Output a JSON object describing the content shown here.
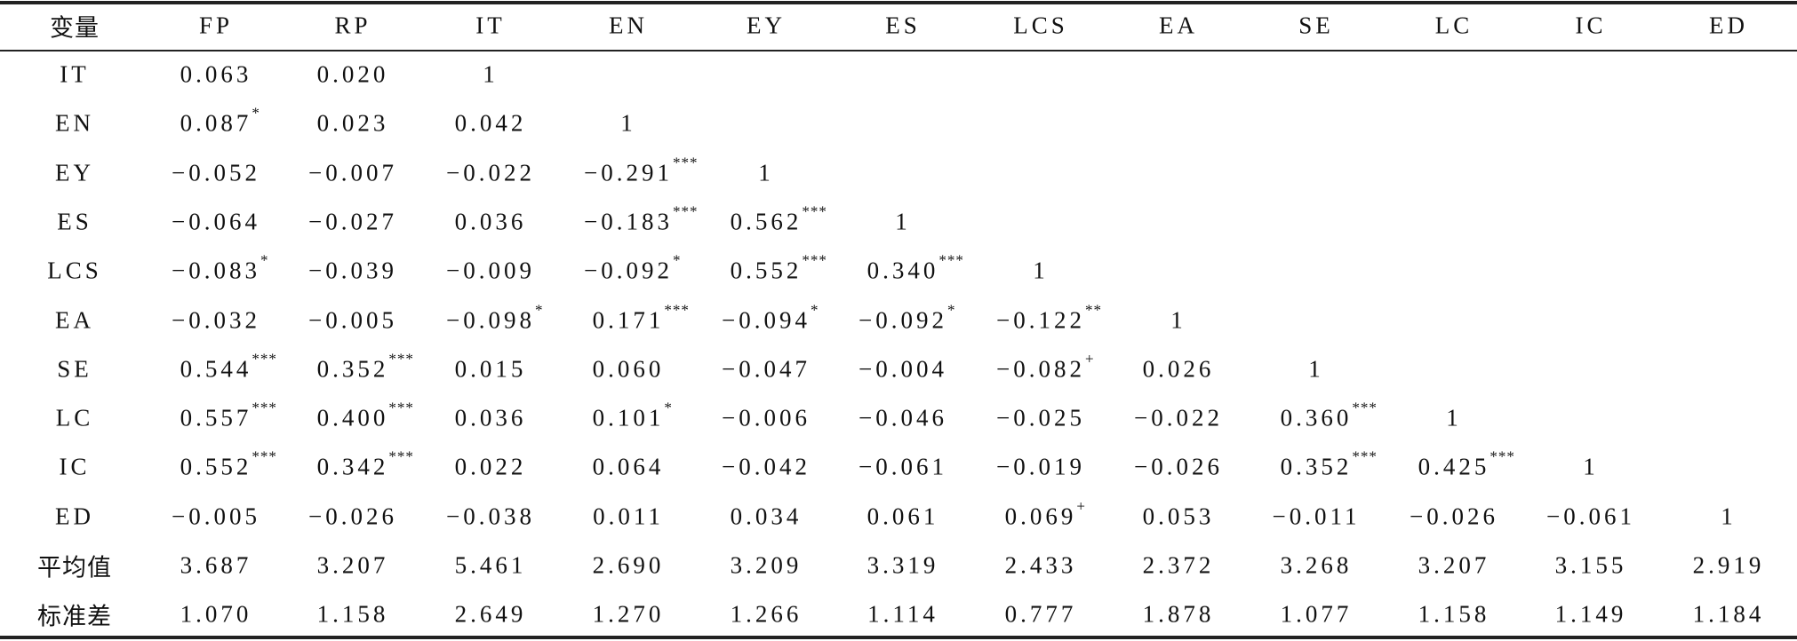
{
  "table": {
    "header": [
      "变量",
      "FP",
      "RP",
      "IT",
      "EN",
      "EY",
      "ES",
      "LCS",
      "EA",
      "SE",
      "LC",
      "IC",
      "ED"
    ],
    "rows": [
      {
        "label": "IT",
        "cells": [
          "0.063",
          "0.020",
          "1"
        ]
      },
      {
        "label": "EN",
        "cells": [
          {
            "value": "0.087",
            "sig": "*"
          },
          "0.023",
          "0.042",
          "1"
        ]
      },
      {
        "label": "EY",
        "cells": [
          "−0.052",
          "−0.007",
          "−0.022",
          {
            "value": "−0.291",
            "sig": "***"
          },
          "1"
        ]
      },
      {
        "label": "ES",
        "cells": [
          "−0.064",
          "−0.027",
          "0.036",
          {
            "value": "−0.183",
            "sig": "***"
          },
          {
            "value": "0.562",
            "sig": "***"
          },
          "1"
        ]
      },
      {
        "label": "LCS",
        "cells": [
          {
            "value": "−0.083",
            "sig": "*"
          },
          "−0.039",
          "−0.009",
          {
            "value": "−0.092",
            "sig": "*"
          },
          {
            "value": "0.552",
            "sig": "***"
          },
          {
            "value": "0.340",
            "sig": "***"
          },
          "1"
        ]
      },
      {
        "label": "EA",
        "cells": [
          "−0.032",
          "−0.005",
          {
            "value": "−0.098",
            "sig": "*"
          },
          {
            "value": "0.171",
            "sig": "***"
          },
          {
            "value": "−0.094",
            "sig": "*"
          },
          {
            "value": "−0.092",
            "sig": "*"
          },
          {
            "value": "−0.122",
            "sig": "**"
          },
          "1"
        ]
      },
      {
        "label": "SE",
        "cells": [
          {
            "value": "0.544",
            "sig": "***"
          },
          {
            "value": "0.352",
            "sig": "***"
          },
          "0.015",
          "0.060",
          "−0.047",
          "−0.004",
          {
            "value": "−0.082",
            "sig": "+"
          },
          "0.026",
          "1"
        ]
      },
      {
        "label": "LC",
        "cells": [
          {
            "value": "0.557",
            "sig": "***"
          },
          {
            "value": "0.400",
            "sig": "***"
          },
          "0.036",
          {
            "value": "0.101",
            "sig": "*"
          },
          "−0.006",
          "−0.046",
          "−0.025",
          "−0.022",
          {
            "value": "0.360",
            "sig": "***"
          },
          "1"
        ]
      },
      {
        "label": "IC",
        "cells": [
          {
            "value": "0.552",
            "sig": "***"
          },
          {
            "value": "0.342",
            "sig": "***"
          },
          "0.022",
          "0.064",
          "−0.042",
          "−0.061",
          "−0.019",
          "−0.026",
          {
            "value": "0.352",
            "sig": "***"
          },
          {
            "value": "0.425",
            "sig": "***"
          },
          "1"
        ]
      },
      {
        "label": "ED",
        "cells": [
          "−0.005",
          "−0.026",
          "−0.038",
          "0.011",
          "0.034",
          "0.061",
          {
            "value": "0.069",
            "sig": "+"
          },
          "0.053",
          "−0.011",
          "−0.026",
          "−0.061",
          "1"
        ]
      },
      {
        "label": "平均值",
        "cells": [
          "3.687",
          "3.207",
          "5.461",
          "2.690",
          "3.209",
          "3.319",
          "2.433",
          "2.372",
          "3.268",
          "3.207",
          "3.155",
          "2.919"
        ]
      },
      {
        "label": "标准差",
        "cells": [
          "1.070",
          "1.158",
          "2.649",
          "1.270",
          "1.266",
          "1.114",
          "0.777",
          "1.878",
          "1.077",
          "1.158",
          "1.149",
          "1.184"
        ]
      }
    ]
  }
}
